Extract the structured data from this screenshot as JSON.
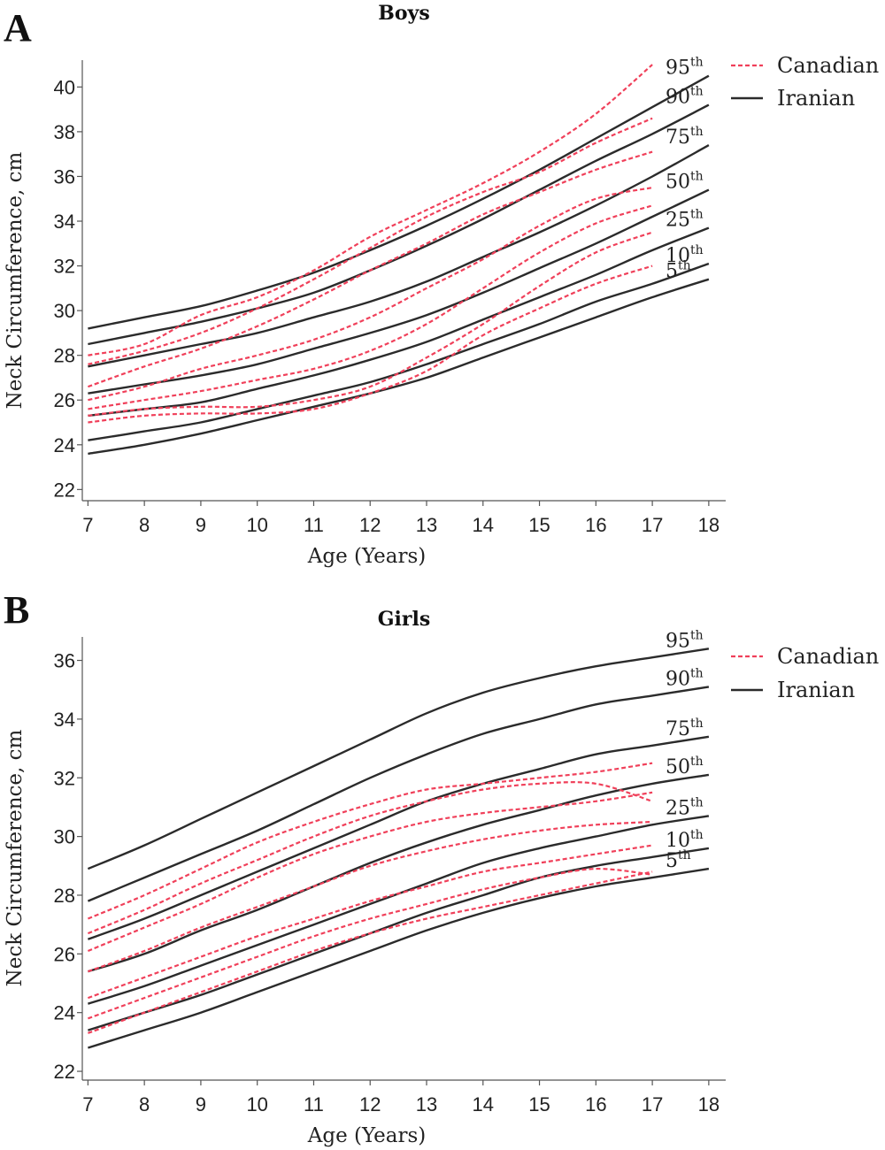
{
  "chart_data": [
    {
      "type": "line",
      "panel_letter": "A",
      "title": "Boys",
      "xlabel": "Age (Years)",
      "ylabel": "Neck Circumference, cm",
      "xlim": [
        6.9,
        18.3
      ],
      "ylim": [
        21.5,
        41.2
      ],
      "x_ticks": [
        7,
        8,
        9,
        10,
        11,
        12,
        13,
        14,
        15,
        16,
        17,
        18
      ],
      "y_ticks": [
        22,
        24,
        26,
        28,
        30,
        32,
        34,
        36,
        38,
        40
      ],
      "legend": [
        {
          "name": "Canadian",
          "style": "dashed",
          "color": "#f0405a"
        },
        {
          "name": "Iranian",
          "style": "solid",
          "color": "#2b2b2b"
        }
      ],
      "grid": false,
      "legend_position": "top-right",
      "iranian_x": [
        7,
        8,
        9,
        10,
        11,
        12,
        13,
        14,
        15,
        16,
        17,
        18
      ],
      "iranian_series": [
        {
          "percentile": "95",
          "suffix": "th",
          "values": [
            29.2,
            29.7,
            30.2,
            30.9,
            31.7,
            32.7,
            33.8,
            35.0,
            36.3,
            37.7,
            39.1,
            40.5
          ]
        },
        {
          "percentile": "90",
          "suffix": "th",
          "values": [
            28.5,
            29.0,
            29.5,
            30.1,
            30.8,
            31.8,
            32.9,
            34.1,
            35.4,
            36.7,
            37.9,
            39.2
          ]
        },
        {
          "percentile": "75",
          "suffix": "th",
          "values": [
            27.5,
            28.0,
            28.5,
            29.0,
            29.7,
            30.4,
            31.3,
            32.4,
            33.5,
            34.7,
            36.0,
            37.4
          ]
        },
        {
          "percentile": "50",
          "suffix": "th",
          "values": [
            26.3,
            26.7,
            27.1,
            27.6,
            28.3,
            29.0,
            29.8,
            30.8,
            31.9,
            33.0,
            34.2,
            35.4
          ]
        },
        {
          "percentile": "25",
          "suffix": "th",
          "values": [
            25.3,
            25.6,
            25.9,
            26.5,
            27.1,
            27.8,
            28.6,
            29.6,
            30.6,
            31.6,
            32.7,
            33.7
          ]
        },
        {
          "percentile": "10",
          "suffix": "th",
          "values": [
            24.2,
            24.6,
            25.0,
            25.6,
            26.2,
            26.8,
            27.6,
            28.5,
            29.4,
            30.4,
            31.2,
            32.1
          ]
        },
        {
          "percentile": "5",
          "suffix": "th",
          "values": [
            23.6,
            24.0,
            24.5,
            25.1,
            25.7,
            26.3,
            27.0,
            27.9,
            28.8,
            29.7,
            30.6,
            31.4
          ]
        }
      ],
      "canadian_x": [
        7,
        8,
        9,
        10,
        11,
        12,
        13,
        14,
        15,
        16,
        17
      ],
      "canadian_series": [
        {
          "percentile": "95",
          "values": [
            28.0,
            28.5,
            29.8,
            30.6,
            31.8,
            33.3,
            34.5,
            35.7,
            37.1,
            38.8,
            41.0
          ]
        },
        {
          "percentile": "90",
          "values": [
            27.6,
            28.2,
            29.0,
            30.1,
            31.4,
            32.8,
            34.2,
            35.3,
            36.2,
            37.5,
            38.6
          ]
        },
        {
          "percentile": "75",
          "values": [
            26.6,
            27.5,
            28.3,
            29.3,
            30.5,
            31.8,
            33.0,
            34.3,
            35.3,
            36.3,
            37.1
          ]
        },
        {
          "percentile": "50",
          "values": [
            26.0,
            26.6,
            27.4,
            28.0,
            28.7,
            29.7,
            31.0,
            32.3,
            33.8,
            35.0,
            35.5
          ]
        },
        {
          "percentile": "25",
          "values": [
            25.6,
            26.0,
            26.4,
            26.9,
            27.4,
            28.2,
            29.4,
            31.0,
            32.6,
            33.9,
            34.7
          ]
        },
        {
          "percentile": "10",
          "values": [
            25.3,
            25.6,
            25.7,
            25.7,
            26.0,
            26.6,
            27.9,
            29.4,
            31.1,
            32.6,
            33.5
          ]
        },
        {
          "percentile": "5",
          "values": [
            25.0,
            25.3,
            25.4,
            25.4,
            25.6,
            26.3,
            27.3,
            28.9,
            30.1,
            31.2,
            32.0
          ]
        }
      ]
    },
    {
      "type": "line",
      "panel_letter": "B",
      "title": "Girls",
      "xlabel": "Age (Years)",
      "ylabel": "Neck Circumference, cm",
      "xlim": [
        6.9,
        18.3
      ],
      "ylim": [
        21.7,
        36.8
      ],
      "x_ticks": [
        7,
        8,
        9,
        10,
        11,
        12,
        13,
        14,
        15,
        16,
        17,
        18
      ],
      "y_ticks": [
        22,
        24,
        26,
        28,
        30,
        32,
        34,
        36
      ],
      "legend": [
        {
          "name": "Canadian",
          "style": "dashed",
          "color": "#f0405a"
        },
        {
          "name": "Iranian",
          "style": "solid",
          "color": "#2b2b2b"
        }
      ],
      "grid": false,
      "legend_position": "top-right",
      "iranian_x": [
        7,
        8,
        9,
        10,
        11,
        12,
        13,
        14,
        15,
        16,
        17,
        18
      ],
      "iranian_series": [
        {
          "percentile": "95",
          "suffix": "th",
          "values": [
            28.9,
            29.7,
            30.6,
            31.5,
            32.4,
            33.3,
            34.2,
            34.9,
            35.4,
            35.8,
            36.1,
            36.4
          ]
        },
        {
          "percentile": "90",
          "suffix": "th",
          "values": [
            27.8,
            28.6,
            29.4,
            30.2,
            31.1,
            32.0,
            32.8,
            33.5,
            34.0,
            34.5,
            34.8,
            35.1
          ]
        },
        {
          "percentile": "75",
          "suffix": "th",
          "values": [
            26.5,
            27.2,
            28.0,
            28.8,
            29.6,
            30.4,
            31.2,
            31.8,
            32.3,
            32.8,
            33.1,
            33.4
          ]
        },
        {
          "percentile": "50",
          "suffix": "th",
          "values": [
            25.4,
            26.0,
            26.8,
            27.5,
            28.3,
            29.1,
            29.8,
            30.4,
            30.9,
            31.4,
            31.8,
            32.1
          ]
        },
        {
          "percentile": "25",
          "suffix": "th",
          "values": [
            24.3,
            24.9,
            25.6,
            26.3,
            27.0,
            27.7,
            28.4,
            29.1,
            29.6,
            30.0,
            30.4,
            30.7
          ]
        },
        {
          "percentile": "10",
          "suffix": "th",
          "values": [
            23.4,
            24.0,
            24.6,
            25.3,
            26.0,
            26.7,
            27.4,
            28.0,
            28.6,
            29.0,
            29.3,
            29.6
          ]
        },
        {
          "percentile": "5",
          "suffix": "th",
          "values": [
            22.8,
            23.4,
            24.0,
            24.7,
            25.4,
            26.1,
            26.8,
            27.4,
            27.9,
            28.3,
            28.6,
            28.9
          ]
        }
      ],
      "canadian_x": [
        7,
        8,
        9,
        10,
        11,
        12,
        13,
        14,
        15,
        16,
        17
      ],
      "canadian_series": [
        {
          "percentile": "95",
          "values": [
            27.2,
            28.0,
            28.9,
            29.8,
            30.5,
            31.1,
            31.6,
            31.8,
            32.0,
            32.2,
            32.5
          ]
        },
        {
          "percentile": "90",
          "values": [
            26.7,
            27.5,
            28.4,
            29.2,
            30.0,
            30.7,
            31.2,
            31.6,
            31.8,
            31.8,
            31.2
          ]
        },
        {
          "percentile": "75",
          "values": [
            26.1,
            26.9,
            27.7,
            28.6,
            29.4,
            30.0,
            30.5,
            30.8,
            31.0,
            31.2,
            31.5
          ]
        },
        {
          "percentile": "50",
          "values": [
            25.4,
            26.1,
            26.9,
            27.6,
            28.3,
            29.0,
            29.5,
            29.9,
            30.2,
            30.4,
            30.5
          ]
        },
        {
          "percentile": "25",
          "values": [
            24.5,
            25.2,
            25.9,
            26.6,
            27.2,
            27.8,
            28.3,
            28.8,
            29.1,
            29.4,
            29.7
          ]
        },
        {
          "percentile": "10",
          "values": [
            23.8,
            24.5,
            25.2,
            25.9,
            26.6,
            27.2,
            27.7,
            28.2,
            28.6,
            28.9,
            28.7
          ]
        },
        {
          "percentile": "5",
          "values": [
            23.3,
            24.0,
            24.7,
            25.4,
            26.1,
            26.7,
            27.2,
            27.6,
            28.0,
            28.4,
            28.8
          ]
        }
      ]
    }
  ]
}
